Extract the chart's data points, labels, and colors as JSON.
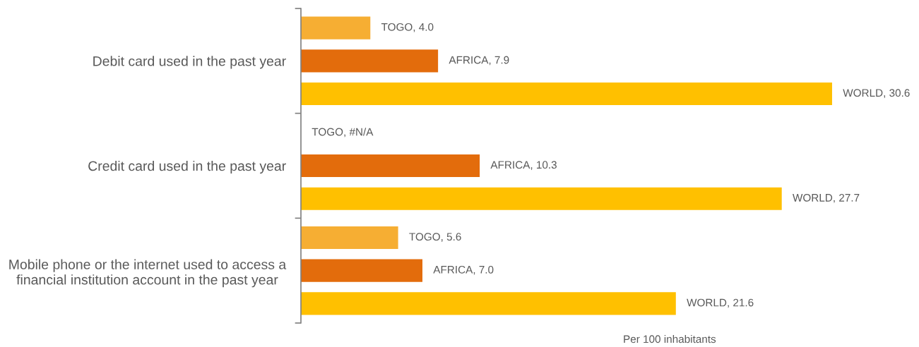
{
  "chart_data": {
    "type": "bar",
    "orientation": "horizontal",
    "xlabel": "Per 100 inhabitants",
    "categories": [
      "Debit card used in the past year",
      "Credit card used in the past year",
      "Mobile phone or the internet used to access a\nfinancial institution account in the past year"
    ],
    "series": [
      {
        "color": "#f6ae33",
        "values": [
          4.0,
          null,
          5.6
        ],
        "value_labels": [
          "TOGO, 4.0",
          "TOGO, #N/A",
          "TOGO, 5.6"
        ]
      },
      {
        "color": "#e36c0c",
        "values": [
          7.9,
          10.3,
          7.0
        ],
        "value_labels": [
          "AFRICA, 7.9",
          "AFRICA, 10.3",
          "AFRICA, 7.0"
        ]
      },
      {
        "color": "#ffc000",
        "values": [
          30.6,
          27.7,
          21.6
        ],
        "value_labels": [
          "WORLD, 30.6",
          "WORLD, 27.7",
          "WORLD, 21.6"
        ]
      }
    ],
    "tick_labels": "y",
    "legend": false,
    "grid": false
  }
}
